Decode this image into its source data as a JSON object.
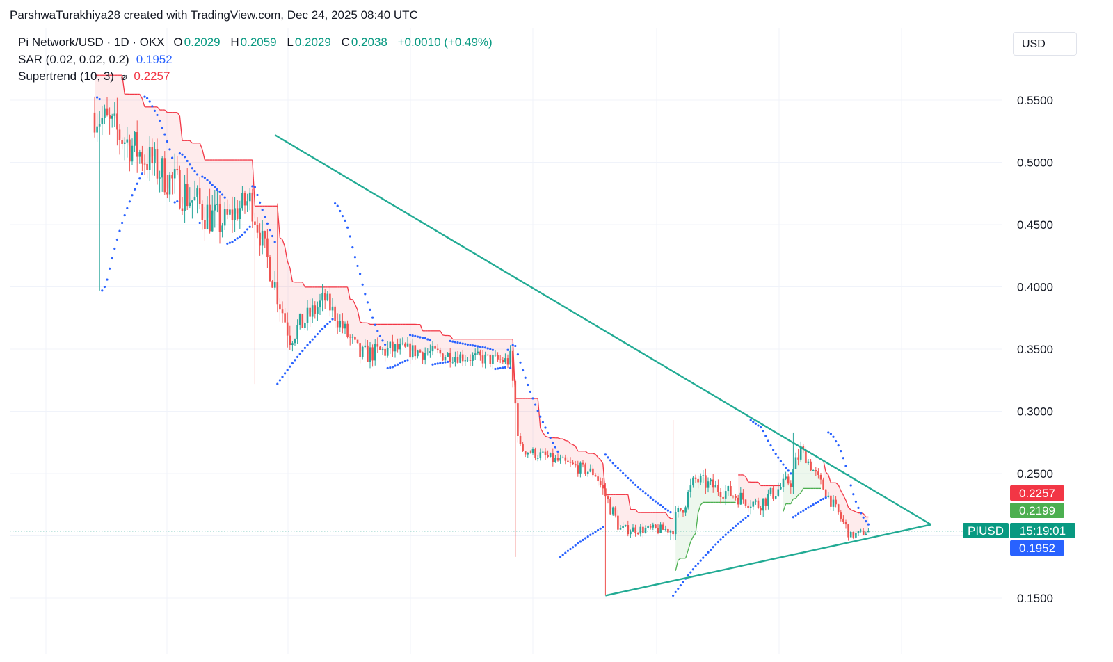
{
  "header": {
    "attribution": "ParshwaTurakhiya28 created with TradingView.com, Dec 24, 2025 08:40 UTC"
  },
  "legend": {
    "symbol": "Pi Network/USD · 1D · OKX",
    "open_label": "O",
    "open": "0.2029",
    "high_label": "H",
    "high": "0.2059",
    "low_label": "L",
    "low": "0.2029",
    "close_label": "C",
    "close": "0.2038",
    "change": "+0.0010 (+0.49%)",
    "sar_label": "SAR (0.02, 0.02, 0.2)",
    "sar_value": "0.1952",
    "supertrend_label": "Supertrend (10, 3)",
    "supertrend_icon": "eye-slash-icon",
    "supertrend_value": "0.2257"
  },
  "currency": "USD",
  "badges": {
    "supertrend": "0.2257",
    "supertrend_up": "0.2199",
    "symbol": "PIUSD",
    "countdown": "15:19:01",
    "sar": "0.1952"
  },
  "colors": {
    "up": "#26a69a",
    "down": "#ef5350",
    "supertrend_down": "#f23645",
    "supertrend_up": "#4caf50",
    "sar": "#2962ff",
    "trendline": "#22ab94",
    "price_line": "#089981"
  },
  "chart_data": {
    "type": "candlestick",
    "y_ticks": [
      "0.5500",
      "0.5000",
      "0.4500",
      "0.4000",
      "0.3500",
      "0.3000",
      "0.2500",
      "0.1500"
    ],
    "ylim": [
      0.11,
      0.6
    ],
    "last_price": 0.2038,
    "segments": [
      {
        "from": 0,
        "to": 50,
        "start": 0.54,
        "end": 0.45,
        "vol": 0.02
      },
      {
        "from": 50,
        "to": 62,
        "start": 0.45,
        "end": 0.47,
        "vol": 0.015
      },
      {
        "from": 62,
        "to": 78,
        "start": 0.47,
        "end": 0.36,
        "vol": 0.014
      },
      {
        "from": 78,
        "to": 92,
        "start": 0.36,
        "end": 0.39,
        "vol": 0.012
      },
      {
        "from": 92,
        "to": 106,
        "start": 0.39,
        "end": 0.345,
        "vol": 0.01
      },
      {
        "from": 106,
        "to": 120,
        "start": 0.345,
        "end": 0.35,
        "vol": 0.01
      },
      {
        "from": 120,
        "to": 142,
        "start": 0.35,
        "end": 0.345,
        "vol": 0.008
      },
      {
        "from": 142,
        "to": 166,
        "start": 0.345,
        "end": 0.34,
        "vol": 0.007
      },
      {
        "from": 166,
        "to": 170,
        "start": 0.34,
        "end": 0.27,
        "vol": 0.012
      },
      {
        "from": 170,
        "to": 200,
        "start": 0.27,
        "end": 0.25,
        "vol": 0.006
      },
      {
        "from": 200,
        "to": 210,
        "start": 0.25,
        "end": 0.205,
        "vol": 0.008
      },
      {
        "from": 210,
        "to": 230,
        "start": 0.205,
        "end": 0.205,
        "vol": 0.005
      },
      {
        "from": 230,
        "to": 240,
        "start": 0.205,
        "end": 0.245,
        "vol": 0.01
      },
      {
        "from": 240,
        "to": 265,
        "start": 0.245,
        "end": 0.225,
        "vol": 0.008
      },
      {
        "from": 265,
        "to": 278,
        "start": 0.225,
        "end": 0.245,
        "vol": 0.008
      },
      {
        "from": 278,
        "to": 282,
        "start": 0.245,
        "end": 0.27,
        "vol": 0.01
      },
      {
        "from": 282,
        "to": 302,
        "start": 0.27,
        "end": 0.2,
        "vol": 0.006
      },
      {
        "from": 302,
        "to": 310,
        "start": 0.2,
        "end": 0.2038,
        "vol": 0.004
      }
    ],
    "spikes": [
      {
        "bar": 2,
        "low": 0.397
      },
      {
        "bar": 64,
        "low": 0.322
      },
      {
        "bar": 73,
        "high": 0.467
      },
      {
        "bar": 168,
        "low": 0.183
      },
      {
        "bar": 204,
        "low": 0.152
      },
      {
        "bar": 231,
        "high": 0.293
      },
      {
        "bar": 279,
        "high": 0.283
      }
    ],
    "triangle": {
      "upper": [
        [
          72,
          0.522
        ],
        [
          334,
          0.209
        ]
      ],
      "lower": [
        [
          204,
          0.152
        ],
        [
          334,
          0.209
        ]
      ]
    }
  }
}
